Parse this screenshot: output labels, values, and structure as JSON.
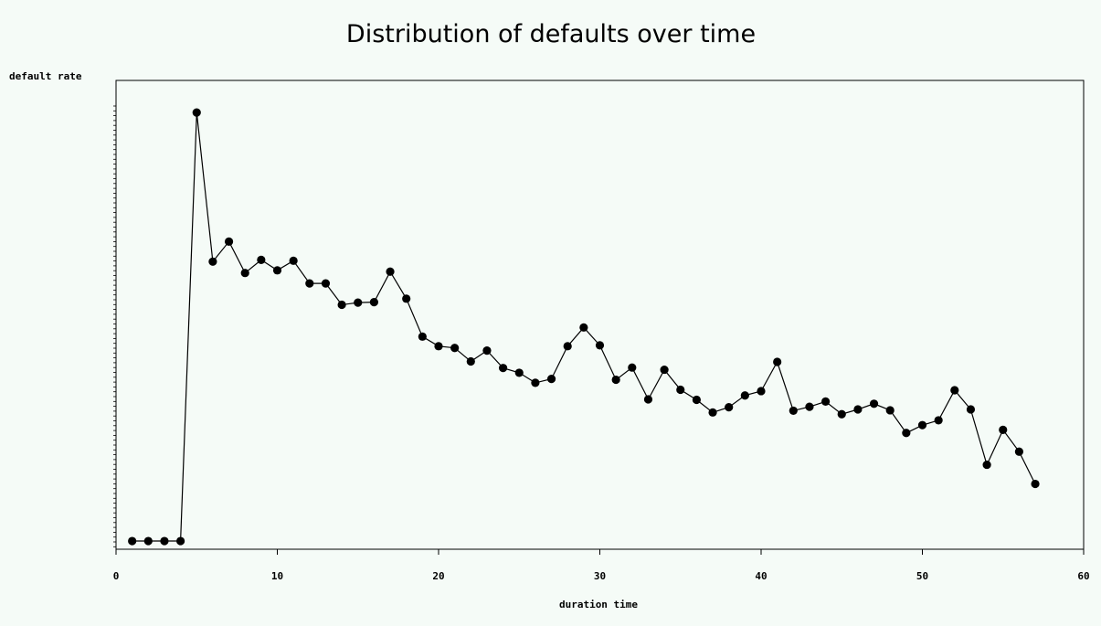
{
  "chart_data": {
    "type": "line",
    "title": "Distribution of defaults over time",
    "xlabel": "duration time",
    "ylabel": "default rate",
    "xlim": [
      0,
      60
    ],
    "x_ticks": [
      0,
      10,
      20,
      30,
      40,
      50,
      60
    ],
    "y_tick_labels_shown": false,
    "grid": false,
    "marker": "filled-circle",
    "line_color": "#000000",
    "background": "#f5fbf7",
    "series": [
      {
        "x": [
          1,
          2,
          3,
          4,
          5,
          6,
          7,
          8,
          9,
          10,
          11,
          12,
          13,
          14,
          15,
          16,
          17,
          18,
          19,
          20,
          21,
          22,
          23,
          24,
          25,
          26,
          27,
          28,
          29,
          30,
          31,
          32,
          33,
          34,
          35,
          36,
          37,
          38,
          39,
          40,
          41,
          42,
          43,
          44,
          45,
          46,
          47,
          48,
          49,
          50,
          51,
          52,
          53,
          54,
          55,
          56,
          57
        ],
        "y": [
          0.2,
          0.2,
          0.2,
          0.2,
          98.5,
          64.3,
          68.9,
          61.7,
          64.7,
          62.3,
          64.5,
          59.3,
          59.3,
          54.4,
          54.9,
          55.0,
          62.0,
          55.8,
          47.1,
          44.9,
          44.5,
          41.4,
          43.9,
          39.9,
          38.8,
          36.5,
          37.4,
          44.9,
          49.2,
          45.1,
          37.2,
          40.0,
          32.7,
          39.5,
          34.9,
          32.6,
          29.7,
          30.9,
          33.6,
          34.6,
          41.3,
          30.1,
          31.0,
          32.2,
          29.3,
          30.4,
          31.7,
          30.2,
          25.0,
          26.8,
          27.9,
          34.8,
          30.4,
          17.7,
          25.7,
          20.7,
          13.3
        ]
      }
    ]
  }
}
